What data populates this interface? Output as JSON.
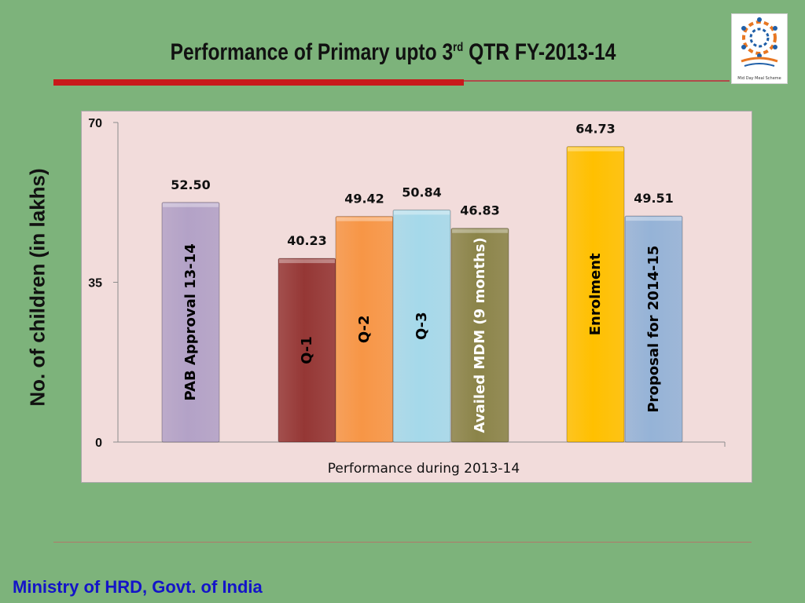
{
  "slide": {
    "title_main": "Performance of Primary upto 3",
    "title_sup": "rd",
    "title_tail": " QTR FY-2013-14",
    "logo_caption": "Mid Day Meal Scheme",
    "footer": "Ministry of HRD, Govt. of India"
  },
  "chart_data": {
    "type": "bar",
    "title": "",
    "xlabel": "Performance during 2013-14",
    "ylabel": "No. of children (in lakhs)",
    "ylim": [
      0,
      70
    ],
    "yticks": [
      0,
      35,
      70
    ],
    "grid": false,
    "legend": "none",
    "categories": [
      "PAB Approval 13-14",
      "Q-1",
      "Q-2",
      "Q-3",
      "Availed MDM (9 months)",
      "Enrolment",
      "Proposal for 2014-15"
    ],
    "values": [
      52.5,
      40.23,
      49.42,
      50.84,
      46.83,
      64.73,
      49.51
    ],
    "value_labels": [
      "52.50",
      "40.23",
      "49.42",
      "50.84",
      "46.83",
      "64.73",
      "49.51"
    ],
    "colors": [
      "#b3a2c7",
      "#953735",
      "#f79646",
      "#a5d9ea",
      "#8b8449",
      "#ffc000",
      "#95b3d7"
    ],
    "label_colors": [
      "#000000",
      "#000000",
      "#000000",
      "#000000",
      "#ffffff",
      "#000000",
      "#000000"
    ]
  }
}
